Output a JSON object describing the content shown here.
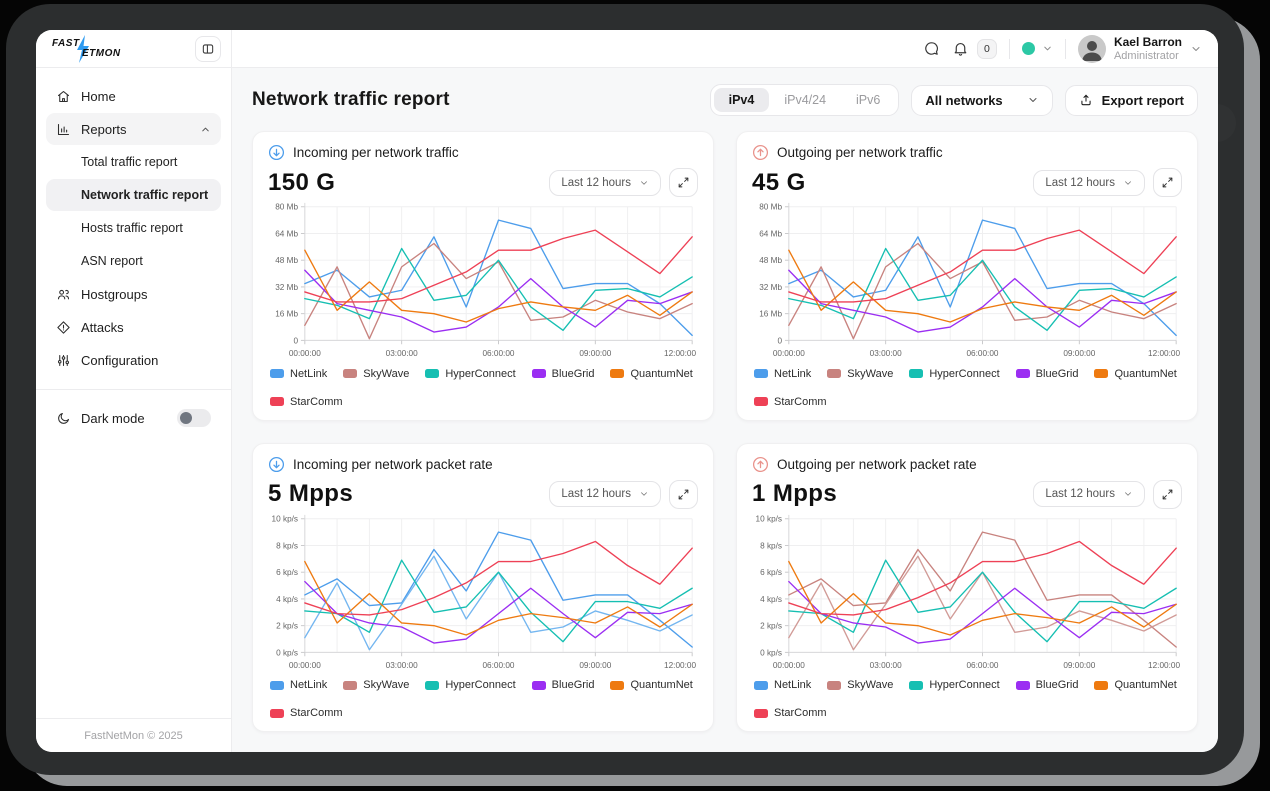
{
  "brand": {
    "name_top": "FAST",
    "name_bottom": "ETMON"
  },
  "sidebar": {
    "items": [
      {
        "label": "Home"
      },
      {
        "label": "Reports",
        "expanded": true
      },
      {
        "label": "Hostgroups"
      },
      {
        "label": "Attacks"
      },
      {
        "label": "Configuration"
      }
    ],
    "report_sub_items": [
      {
        "label": "Total traffic report"
      },
      {
        "label": "Network traffic report",
        "active": true
      },
      {
        "label": "Hosts traffic report"
      },
      {
        "label": "ASN report"
      }
    ],
    "dark_mode_label": "Dark mode",
    "footer": "FastNetMon © 2025"
  },
  "topbar": {
    "notification_count": "0",
    "status_color": "#2cc8a5",
    "user": {
      "name": "Kael Barron",
      "role": "Administrator"
    }
  },
  "page": {
    "title": "Network traffic report",
    "tabs": [
      "iPv4",
      "iPv4/24",
      "iPv6"
    ],
    "active_tab": "iPv4",
    "network_filter": "All networks",
    "export_label": "Export report"
  },
  "chart_data": [
    {
      "type": "line",
      "title": "Incoming per network traffic",
      "direction": "incoming",
      "icon_color": "#4d9deb",
      "stat": "150 G",
      "time_range": "Last 12 hours",
      "ylim": [
        0,
        80
      ],
      "y_ticks": [
        {
          "v": 0,
          "label": "0"
        },
        {
          "v": 16,
          "label": "16 Mb"
        },
        {
          "v": 32,
          "label": "32 Mb"
        },
        {
          "v": 48,
          "label": "48 Mb"
        },
        {
          "v": 64,
          "label": "64 Mb"
        },
        {
          "v": 80,
          "label": "80 Mb"
        }
      ],
      "x_ticks": [
        {
          "i": 0,
          "label": "00:00:00"
        },
        {
          "i": 3,
          "label": "03:00:00"
        },
        {
          "i": 6,
          "label": "06:00:00"
        },
        {
          "i": 9,
          "label": "09:00:00"
        },
        {
          "i": 12,
          "label": "12:00:00"
        }
      ],
      "series": [
        {
          "name": "NetLink",
          "color": "#4d9deb",
          "values": [
            34,
            42,
            26,
            30,
            62,
            20,
            72,
            67,
            31,
            34,
            34,
            22,
            3
          ]
        },
        {
          "name": "SkyWave",
          "color": "#c8837f",
          "values": [
            9,
            44,
            1,
            44,
            58,
            37,
            47,
            12,
            14,
            24,
            17,
            13,
            22
          ]
        },
        {
          "name": "HyperConnect",
          "color": "#16bfb2",
          "values": [
            25,
            21,
            13,
            55,
            24,
            27,
            48,
            20,
            6,
            30,
            31,
            26,
            38
          ]
        },
        {
          "name": "BlueGrid",
          "color": "#9b2ef2",
          "values": [
            42,
            22,
            18,
            14,
            5,
            8,
            20,
            37,
            20,
            8,
            24,
            22,
            29
          ]
        },
        {
          "name": "QuantumNet",
          "color": "#ee7a10",
          "values": [
            54,
            18,
            35,
            18,
            16,
            11,
            19,
            23,
            20,
            18,
            27,
            15,
            29
          ]
        },
        {
          "name": "StarComm",
          "color": "#ee4156",
          "values": [
            29,
            23,
            23,
            25,
            33,
            41,
            54,
            54,
            61,
            66,
            53,
            40,
            62
          ]
        }
      ]
    },
    {
      "type": "line",
      "title": "Outgoing per network traffic",
      "direction": "outgoing",
      "icon_color": "#e9938c",
      "stat": "45 G",
      "time_range": "Last 12 hours",
      "ylim": [
        0,
        80
      ],
      "y_ticks": [
        {
          "v": 0,
          "label": "0"
        },
        {
          "v": 16,
          "label": "16 Mb"
        },
        {
          "v": 32,
          "label": "32 Mb"
        },
        {
          "v": 48,
          "label": "48 Mb"
        },
        {
          "v": 64,
          "label": "64 Mb"
        },
        {
          "v": 80,
          "label": "80 Mb"
        }
      ],
      "x_ticks": [
        {
          "i": 0,
          "label": "00:00:00"
        },
        {
          "i": 3,
          "label": "03:00:00"
        },
        {
          "i": 6,
          "label": "06:00:00"
        },
        {
          "i": 9,
          "label": "09:00:00"
        },
        {
          "i": 12,
          "label": "12:00:00"
        }
      ],
      "series": [
        {
          "name": "NetLink",
          "color": "#4d9deb",
          "values": [
            34,
            42,
            26,
            30,
            62,
            20,
            72,
            67,
            31,
            34,
            34,
            22,
            3
          ]
        },
        {
          "name": "SkyWave",
          "color": "#c8837f",
          "values": [
            9,
            44,
            1,
            44,
            58,
            37,
            47,
            12,
            14,
            24,
            17,
            13,
            22
          ]
        },
        {
          "name": "HyperConnect",
          "color": "#16bfb2",
          "values": [
            25,
            21,
            13,
            55,
            24,
            27,
            48,
            20,
            6,
            30,
            31,
            26,
            38
          ]
        },
        {
          "name": "BlueGrid",
          "color": "#9b2ef2",
          "values": [
            42,
            22,
            18,
            14,
            5,
            8,
            20,
            37,
            20,
            8,
            24,
            22,
            29
          ]
        },
        {
          "name": "QuantumNet",
          "color": "#ee7a10",
          "values": [
            54,
            18,
            35,
            18,
            16,
            11,
            19,
            23,
            20,
            18,
            27,
            15,
            29
          ]
        },
        {
          "name": "StarComm",
          "color": "#ee4156",
          "values": [
            29,
            23,
            23,
            25,
            33,
            41,
            54,
            54,
            61,
            66,
            53,
            40,
            62
          ]
        }
      ]
    },
    {
      "type": "line",
      "title": "Incoming per network packet rate",
      "direction": "incoming",
      "icon_color": "#4d9deb",
      "stat": "5 Mpps",
      "time_range": "Last 12 hours",
      "ylim": [
        0,
        10
      ],
      "y_ticks": [
        {
          "v": 0,
          "label": "0 kp/s"
        },
        {
          "v": 2,
          "label": "2 kp/s"
        },
        {
          "v": 4,
          "label": "4 kp/s"
        },
        {
          "v": 6,
          "label": "6 kp/s"
        },
        {
          "v": 8,
          "label": "8 kp/s"
        },
        {
          "v": 10,
          "label": "10 kp/s"
        }
      ],
      "x_ticks": [
        {
          "i": 0,
          "label": "00:00:00"
        },
        {
          "i": 3,
          "label": "03:00:00"
        },
        {
          "i": 6,
          "label": "06:00:00"
        },
        {
          "i": 9,
          "label": "09:00:00"
        },
        {
          "i": 12,
          "label": "12:00:00"
        }
      ],
      "series": [
        {
          "name": "NetLink",
          "color": "#4d9deb",
          "values": [
            4.3,
            5.5,
            3.5,
            3.7,
            7.7,
            4.6,
            9.0,
            8.4,
            3.9,
            4.3,
            4.3,
            2.4,
            0.4
          ]
        },
        {
          "name": "SkyWave",
          "color": "#c8837f",
          "line_color": "#74b6f0",
          "values": [
            1.1,
            5.2,
            0.2,
            3.6,
            7.2,
            2.5,
            6.0,
            1.5,
            1.9,
            3.1,
            2.4,
            1.6,
            2.8
          ]
        },
        {
          "name": "HyperConnect",
          "color": "#16bfb2",
          "values": [
            3.1,
            2.9,
            1.5,
            6.9,
            3.0,
            3.4,
            6.0,
            3.0,
            0.8,
            3.8,
            3.8,
            3.3,
            4.8
          ]
        },
        {
          "name": "BlueGrid",
          "color": "#9b2ef2",
          "values": [
            5.3,
            2.9,
            2.2,
            1.9,
            0.7,
            1.0,
            2.9,
            4.8,
            2.9,
            1.1,
            3.0,
            2.9,
            3.6
          ]
        },
        {
          "name": "QuantumNet",
          "color": "#ee7a10",
          "values": [
            6.8,
            2.2,
            4.4,
            2.2,
            2.0,
            1.3,
            2.4,
            2.9,
            2.6,
            2.2,
            3.4,
            1.9,
            3.6
          ]
        },
        {
          "name": "StarComm",
          "color": "#ee4156",
          "values": [
            3.7,
            2.9,
            2.8,
            3.2,
            4.1,
            5.2,
            6.8,
            6.8,
            7.4,
            8.3,
            6.5,
            5.1,
            7.8
          ]
        }
      ]
    },
    {
      "type": "line",
      "title": "Outgoing per network packet rate",
      "direction": "outgoing",
      "icon_color": "#e9938c",
      "stat": "1 Mpps",
      "time_range": "Last 12 hours",
      "ylim": [
        0,
        10
      ],
      "y_ticks": [
        {
          "v": 0,
          "label": "0 kp/s"
        },
        {
          "v": 2,
          "label": "2 kp/s"
        },
        {
          "v": 4,
          "label": "4 kp/s"
        },
        {
          "v": 6,
          "label": "6 kp/s"
        },
        {
          "v": 8,
          "label": "8 kp/s"
        },
        {
          "v": 10,
          "label": "10 kp/s"
        }
      ],
      "x_ticks": [
        {
          "i": 0,
          "label": "00:00:00"
        },
        {
          "i": 3,
          "label": "03:00:00"
        },
        {
          "i": 6,
          "label": "06:00:00"
        },
        {
          "i": 9,
          "label": "09:00:00"
        },
        {
          "i": 12,
          "label": "12:00:00"
        }
      ],
      "series": [
        {
          "name": "NetLink",
          "color": "#4d9deb",
          "line_color": "#c8837f",
          "values": [
            4.3,
            5.5,
            3.5,
            3.7,
            7.7,
            4.6,
            9.0,
            8.4,
            3.9,
            4.3,
            4.3,
            2.4,
            0.4
          ]
        },
        {
          "name": "SkyWave",
          "color": "#c8837f",
          "line_color": "#d19b97",
          "values": [
            1.1,
            5.2,
            0.2,
            3.6,
            7.2,
            2.5,
            6.0,
            1.5,
            1.9,
            3.1,
            2.4,
            1.6,
            2.8
          ]
        },
        {
          "name": "HyperConnect",
          "color": "#16bfb2",
          "values": [
            3.1,
            2.9,
            1.5,
            6.9,
            3.0,
            3.4,
            6.0,
            3.0,
            0.8,
            3.8,
            3.8,
            3.3,
            4.8
          ]
        },
        {
          "name": "BlueGrid",
          "color": "#9b2ef2",
          "values": [
            5.3,
            2.9,
            2.2,
            1.9,
            0.7,
            1.0,
            2.9,
            4.8,
            2.9,
            1.1,
            3.0,
            2.9,
            3.6
          ]
        },
        {
          "name": "QuantumNet",
          "color": "#ee7a10",
          "values": [
            6.8,
            2.2,
            4.4,
            2.2,
            2.0,
            1.3,
            2.4,
            2.9,
            2.6,
            2.2,
            3.4,
            1.9,
            3.6
          ]
        },
        {
          "name": "StarComm",
          "color": "#ee4156",
          "values": [
            3.7,
            2.9,
            2.8,
            3.2,
            4.1,
            5.2,
            6.8,
            6.8,
            7.4,
            8.3,
            6.5,
            5.1,
            7.8
          ]
        }
      ]
    }
  ]
}
